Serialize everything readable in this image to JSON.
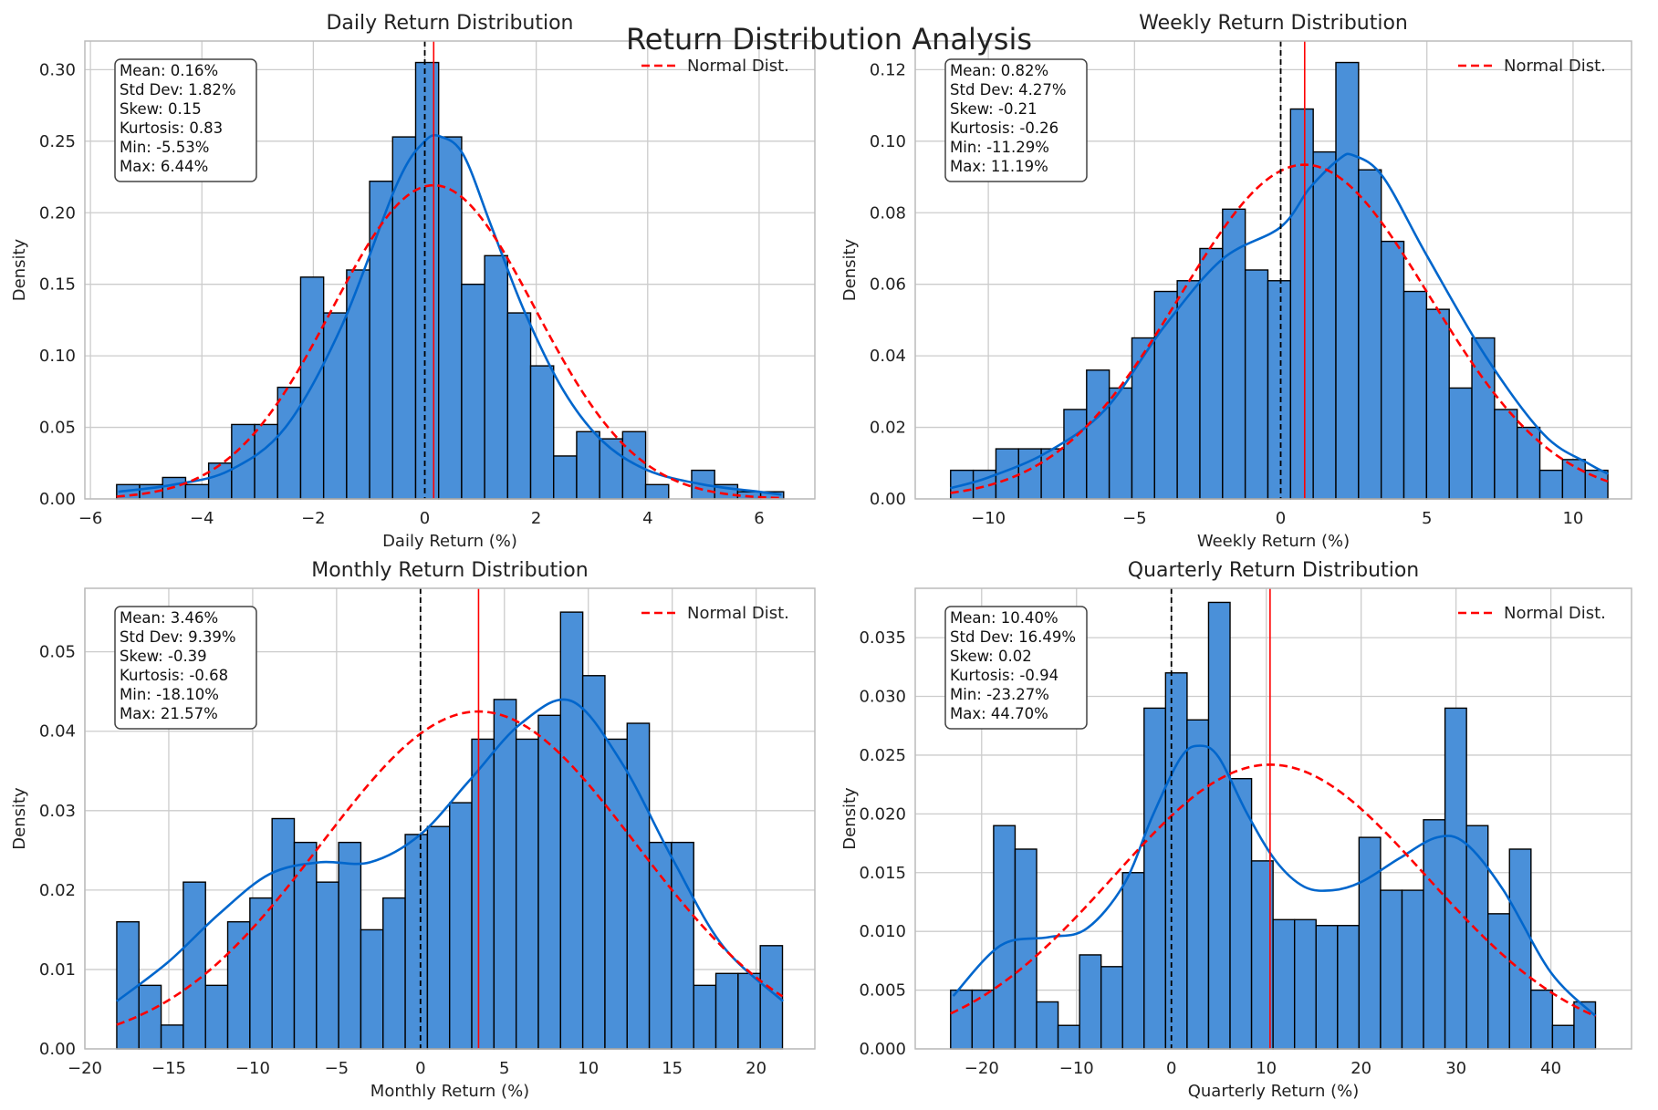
{
  "suptitle": "Return Distribution Analysis",
  "colors": {
    "bar_fill": "#4a90d9",
    "bar_edge": "#000000",
    "kde_line": "#0066cc",
    "normal_line": "#ff0000",
    "mean_line": "#ff0000",
    "zero_line": "#000000",
    "grid": "#cccccc",
    "frame": "#bbbbbb"
  },
  "chart_data": [
    {
      "type": "bar",
      "title": "Daily Return Distribution",
      "xlabel": "Daily Return (%)",
      "ylabel": "Density",
      "xlim": [
        -6.1,
        7.0
      ],
      "ylim": [
        0,
        0.32
      ],
      "xticks": [
        -6,
        -4,
        -2,
        0,
        2,
        4,
        6
      ],
      "xtick_labels": [
        "−6",
        "−4",
        "−2",
        "0",
        "2",
        "4",
        "6"
      ],
      "yticks": [
        0,
        0.05,
        0.1,
        0.15,
        0.2,
        0.25,
        0.3
      ],
      "ytick_labels": [
        "0.00",
        "0.05",
        "0.10",
        "0.15",
        "0.20",
        "0.25",
        "0.30"
      ],
      "bin_start": -5.53,
      "bin_end": 6.44,
      "densities": [
        0.01,
        0.01,
        0.015,
        0.01,
        0.025,
        0.052,
        0.052,
        0.078,
        0.155,
        0.13,
        0.16,
        0.222,
        0.253,
        0.305,
        0.253,
        0.15,
        0.17,
        0.13,
        0.093,
        0.03,
        0.047,
        0.042,
        0.047,
        0.01,
        0.0,
        0.02,
        0.01,
        0.005,
        0.005
      ],
      "kde": {
        "x": [
          -5.5,
          -4.5,
          -3.5,
          -2.5,
          -1.5,
          -0.5,
          0.0,
          0.3,
          0.7,
          1.2,
          1.8,
          2.5,
          3.2,
          4.0,
          5.0,
          6.0,
          6.4
        ],
        "y": [
          0.005,
          0.01,
          0.02,
          0.05,
          0.12,
          0.22,
          0.25,
          0.253,
          0.24,
          0.19,
          0.13,
          0.075,
          0.04,
          0.02,
          0.01,
          0.005,
          0.003
        ]
      },
      "mean": 0.16,
      "std": 1.82,
      "stats": [
        "Mean: 0.16%",
        "Std Dev: 1.82%",
        "Skew: 0.15",
        "Kurtosis: 0.83",
        "Min: -5.53%",
        "Max: 6.44%"
      ],
      "legend": [
        "Normal Dist."
      ]
    },
    {
      "type": "bar",
      "title": "Weekly Return Distribution",
      "xlabel": "Weekly Return (%)",
      "ylabel": "Density",
      "xlim": [
        -12.5,
        12.0
      ],
      "ylim": [
        0,
        0.128
      ],
      "xticks": [
        -10,
        -5,
        0,
        5,
        10
      ],
      "xtick_labels": [
        "−10",
        "−5",
        "0",
        "5",
        "10"
      ],
      "yticks": [
        0,
        0.02,
        0.04,
        0.06,
        0.08,
        0.1,
        0.12
      ],
      "ytick_labels": [
        "0.00",
        "0.02",
        "0.04",
        "0.06",
        "0.08",
        "0.10",
        "0.12"
      ],
      "bin_start": -11.29,
      "bin_end": 11.19,
      "densities": [
        0.008,
        0.008,
        0.014,
        0.014,
        0.014,
        0.025,
        0.036,
        0.031,
        0.045,
        0.058,
        0.061,
        0.07,
        0.081,
        0.064,
        0.061,
        0.109,
        0.097,
        0.122,
        0.092,
        0.072,
        0.058,
        0.053,
        0.031,
        0.045,
        0.025,
        0.02,
        0.008,
        0.011,
        0.008
      ],
      "kde": {
        "x": [
          -11.3,
          -10,
          -8,
          -6,
          -4,
          -2,
          0,
          1,
          2,
          2.5,
          3.5,
          5,
          7,
          9,
          10.5,
          11.2
        ],
        "y": [
          0.003,
          0.006,
          0.013,
          0.025,
          0.048,
          0.067,
          0.076,
          0.087,
          0.095,
          0.096,
          0.09,
          0.068,
          0.04,
          0.018,
          0.01,
          0.007
        ]
      },
      "mean": 0.82,
      "std": 4.27,
      "stats": [
        "Mean: 0.82%",
        "Std Dev: 4.27%",
        "Skew: -0.21",
        "Kurtosis: -0.26",
        "Min: -11.29%",
        "Max: 11.19%"
      ],
      "legend": [
        "Normal Dist."
      ]
    },
    {
      "type": "bar",
      "title": "Monthly Return Distribution",
      "xlabel": "Monthly Return (%)",
      "ylabel": "Density",
      "xlim": [
        -20.0,
        23.5
      ],
      "ylim": [
        0,
        0.058
      ],
      "xticks": [
        -20,
        -15,
        -10,
        -5,
        0,
        5,
        10,
        15,
        20
      ],
      "xtick_labels": [
        "−20",
        "−15",
        "−10",
        "−5",
        "0",
        "5",
        "10",
        "15",
        "20"
      ],
      "yticks": [
        0,
        0.01,
        0.02,
        0.03,
        0.04,
        0.05
      ],
      "ytick_labels": [
        "0.00",
        "0.01",
        "0.02",
        "0.03",
        "0.04",
        "0.05"
      ],
      "bin_start": -18.1,
      "bin_end": 21.57,
      "densities": [
        0.016,
        0.008,
        0.003,
        0.021,
        0.008,
        0.016,
        0.019,
        0.029,
        0.026,
        0.021,
        0.026,
        0.015,
        0.019,
        0.027,
        0.028,
        0.031,
        0.039,
        0.044,
        0.039,
        0.042,
        0.055,
        0.047,
        0.039,
        0.041,
        0.026,
        0.026,
        0.008,
        0.0095,
        0.0095,
        0.013
      ],
      "kde": {
        "x": [
          -18.1,
          -15,
          -12,
          -9,
          -6,
          -3,
          0,
          3,
          6,
          9,
          12,
          15,
          18,
          21.6
        ],
        "y": [
          0.006,
          0.011,
          0.017,
          0.022,
          0.0235,
          0.0235,
          0.027,
          0.034,
          0.041,
          0.0438,
          0.036,
          0.024,
          0.013,
          0.006
        ]
      },
      "mean": 3.46,
      "std": 9.39,
      "stats": [
        "Mean: 3.46%",
        "Std Dev: 9.39%",
        "Skew: -0.39",
        "Kurtosis: -0.68",
        "Min: -18.10%",
        "Max: 21.57%"
      ],
      "legend": [
        "Normal Dist."
      ]
    },
    {
      "type": "bar",
      "title": "Quarterly Return Distribution",
      "xlabel": "Quarterly Return (%)",
      "ylabel": "Density",
      "xlim": [
        -27.0,
        48.5
      ],
      "ylim": [
        0,
        0.0392
      ],
      "xticks": [
        -20,
        -10,
        0,
        10,
        20,
        30,
        40
      ],
      "xtick_labels": [
        "−20",
        "−10",
        "0",
        "10",
        "20",
        "30",
        "40"
      ],
      "yticks": [
        0,
        0.005,
        0.01,
        0.015,
        0.02,
        0.025,
        0.03,
        0.035
      ],
      "ytick_labels": [
        "0.000",
        "0.005",
        "0.010",
        "0.015",
        "0.020",
        "0.025",
        "0.030",
        "0.035"
      ],
      "bin_start": -23.27,
      "bin_end": 44.7,
      "densities": [
        0.005,
        0.005,
        0.019,
        0.017,
        0.004,
        0.002,
        0.008,
        0.007,
        0.015,
        0.029,
        0.032,
        0.028,
        0.038,
        0.023,
        0.016,
        0.011,
        0.011,
        0.0105,
        0.0105,
        0.018,
        0.0135,
        0.0135,
        0.0195,
        0.029,
        0.019,
        0.0115,
        0.017,
        0.005,
        0.002,
        0.004
      ],
      "kde": {
        "x": [
          -23,
          -18,
          -13,
          -9,
          -5,
          -2,
          1,
          3,
          5,
          8,
          11,
          14,
          17,
          20,
          24,
          28,
          31,
          35,
          40,
          44.7
        ],
        "y": [
          0.0045,
          0.0088,
          0.0095,
          0.0102,
          0.014,
          0.0198,
          0.0248,
          0.0258,
          0.0248,
          0.02,
          0.016,
          0.0138,
          0.0135,
          0.0142,
          0.0162,
          0.018,
          0.0175,
          0.0135,
          0.0065,
          0.0028
        ]
      },
      "mean": 10.4,
      "std": 16.49,
      "stats": [
        "Mean: 10.40%",
        "Std Dev: 16.49%",
        "Skew: 0.02",
        "Kurtosis: -0.94",
        "Min: -23.27%",
        "Max: 44.70%"
      ],
      "legend": [
        "Normal Dist."
      ]
    }
  ]
}
